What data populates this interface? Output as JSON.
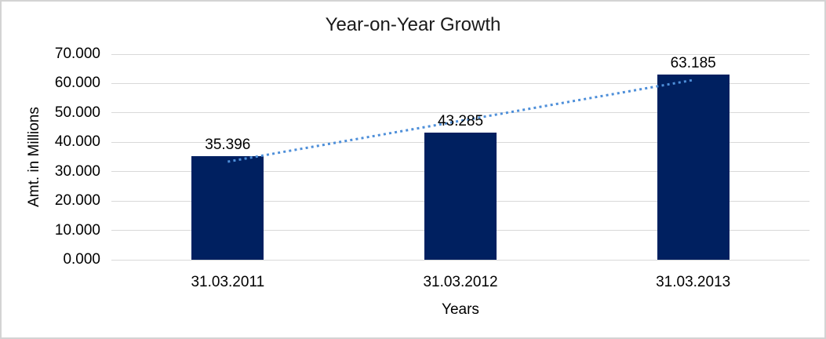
{
  "chart_data": {
    "type": "bar",
    "title": "Year-on-Year Growth",
    "categories": [
      "31.03.2011",
      "31.03.2012",
      "31.03.2013"
    ],
    "values": [
      35.396,
      43.285,
      63.185
    ],
    "data_labels": [
      "35.396",
      "43.285",
      "63.185"
    ],
    "xlabel": "Years",
    "ylabel": "Amt. in Millions",
    "ylim": [
      0,
      70
    ],
    "ytick_step": 10,
    "ytick_labels": [
      "0.000",
      "10.000",
      "20.000",
      "30.000",
      "40.000",
      "50.000",
      "60.000",
      "70.000"
    ],
    "grid": true,
    "legend_position": "none",
    "trendline": {
      "type": "linear",
      "style": "dotted"
    },
    "colors": {
      "bar": "#002060",
      "trendline": "#4e8fd9",
      "gridline": "#d9d9d9",
      "frame_border": "#d3d3d3",
      "text": "#000000",
      "background": "#ffffff"
    }
  }
}
